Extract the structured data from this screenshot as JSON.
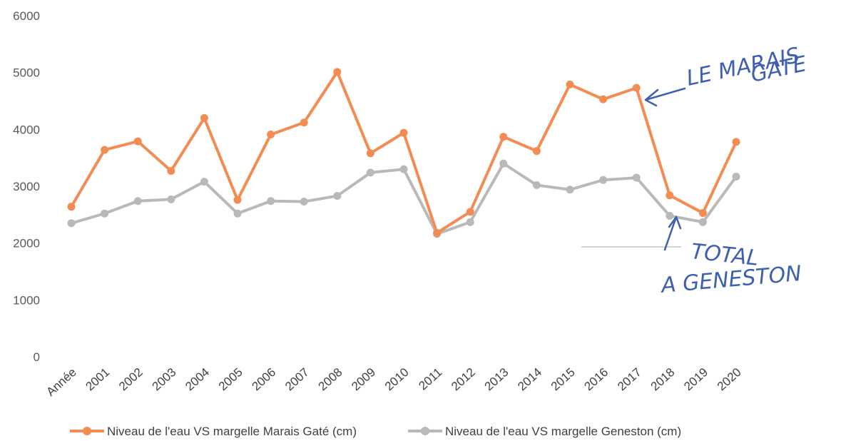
{
  "chart_data": {
    "type": "line",
    "categories": [
      "Année",
      "2001",
      "2002",
      "2003",
      "2004",
      "2005",
      "2006",
      "2007",
      "2008",
      "2009",
      "2010",
      "2011",
      "2012",
      "2013",
      "2014",
      "2015",
      "2016",
      "2017",
      "2018",
      "2019",
      "2020"
    ],
    "ylim": [
      0,
      6000
    ],
    "yticks": [
      "0",
      "1000",
      "2000",
      "3000",
      "4000",
      "5000",
      "6000"
    ],
    "grid": false,
    "legend_position": "bottom",
    "series": [
      {
        "name": "Niveau de l'eau VS margelle Marais Gaté (cm)",
        "color": "#f28c52",
        "values": [
          2640,
          3640,
          3790,
          3270,
          4200,
          2760,
          3910,
          4120,
          5010,
          3580,
          3940,
          2180,
          2550,
          3870,
          3620,
          4790,
          4530,
          4730,
          2840,
          2530,
          3780
        ]
      },
      {
        "name": "Niveau de l'eau VS margelle Geneston (cm)",
        "color": "#b9b9b9",
        "values": [
          2350,
          2520,
          2740,
          2770,
          3080,
          2520,
          2740,
          2730,
          2830,
          3240,
          3300,
          2160,
          2370,
          3400,
          3020,
          2940,
          3110,
          3150,
          2480,
          2370,
          3170
        ]
      }
    ],
    "annotations": [
      {
        "id": "marais",
        "lines": [
          "LE MARAIS",
          "GATE"
        ]
      },
      {
        "id": "geneston",
        "lines": [
          "TOTAL",
          "A GENESTON"
        ]
      }
    ]
  }
}
